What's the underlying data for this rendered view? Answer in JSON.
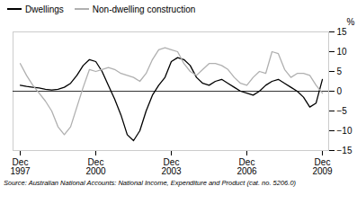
{
  "chart_data": {
    "type": "line",
    "ylabel": "%",
    "source": "Source: Australian National Accounts: National Income, Expenditure and Product (cat. no. 5206.0)",
    "categories": [
      "Dec\n1997",
      null,
      null,
      null,
      null,
      null,
      null,
      null,
      null,
      null,
      null,
      null,
      "Dec\n2000",
      null,
      null,
      null,
      null,
      null,
      null,
      null,
      null,
      null,
      null,
      null,
      "Dec\n2003",
      null,
      null,
      null,
      null,
      null,
      null,
      null,
      null,
      null,
      null,
      null,
      "Dec\n2006",
      null,
      null,
      null,
      null,
      null,
      null,
      null,
      null,
      null,
      null,
      null,
      "Dec\n2009"
    ],
    "series": [
      {
        "name": "Dwellings",
        "color": "#000000",
        "values": [
          1.5,
          1.2,
          1.0,
          0.8,
          0.5,
          0.3,
          0.5,
          1.0,
          2.0,
          4.0,
          6.5,
          8.0,
          7.5,
          5.0,
          1.5,
          -2.0,
          -6.0,
          -11.0,
          -12.5,
          -10.0,
          -5.0,
          -1.0,
          1.5,
          3.5,
          7.5,
          8.5,
          8.0,
          6.5,
          3.5,
          2.0,
          1.5,
          2.5,
          3.0,
          2.0,
          1.0,
          0.0,
          -0.5,
          -1.0,
          0.0,
          1.5,
          2.5,
          3.0,
          2.0,
          1.0,
          0.0,
          -1.5,
          -4.0,
          -3.0,
          3.0
        ]
      },
      {
        "name": "Non-dwelling construction",
        "color": "#b0b0b0",
        "values": [
          7.0,
          4.0,
          1.5,
          -0.5,
          -2.5,
          -5.0,
          -9.0,
          -11.0,
          -9.0,
          -4.0,
          1.0,
          5.5,
          5.0,
          5.5,
          6.0,
          5.5,
          4.5,
          4.0,
          3.5,
          2.5,
          4.5,
          8.0,
          10.5,
          11.0,
          10.5,
          10.0,
          7.0,
          5.0,
          4.0,
          5.5,
          7.0,
          7.0,
          6.5,
          5.5,
          3.5,
          2.0,
          1.5,
          3.5,
          5.0,
          4.5,
          10.0,
          9.5,
          5.5,
          3.5,
          4.5,
          4.5,
          4.0,
          1.5,
          -0.5
        ]
      }
    ],
    "ylim": [
      -15,
      15
    ],
    "yticks": [
      -15,
      -10,
      -5,
      0,
      5,
      10,
      15
    ],
    "legend": "upper left"
  }
}
